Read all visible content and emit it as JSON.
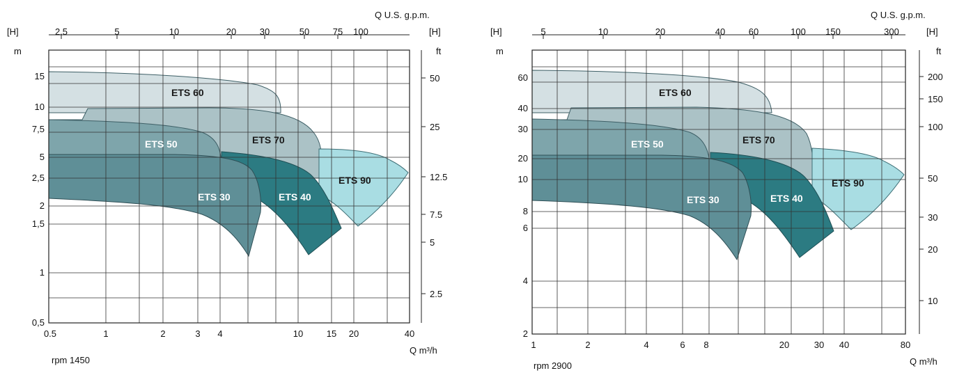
{
  "chart_data": [
    {
      "type": "area",
      "speed_label": "rpm 1450",
      "x_unit_label": "Q  m³/h",
      "top_unit_label": "Q  U.S. g.p.m.",
      "left_unit_label": "[H]",
      "left_unit_sub": "m",
      "right_unit_label": "[H]",
      "right_unit_sub": "ft",
      "x_ticks": [
        "0.5",
        "1",
        "2",
        "3",
        "4",
        "10",
        "15",
        "20",
        "40"
      ],
      "top_ticks": [
        "2.5",
        "5",
        "10",
        "20",
        "30",
        "50",
        "75",
        "100"
      ],
      "left_ticks": [
        "15",
        "10",
        "7,5",
        "5",
        "2,5",
        "2",
        "1,5",
        "1",
        "0,5"
      ],
      "right_ticks": [
        "50",
        "25",
        "12.5",
        "7.5",
        "5",
        "2.5"
      ],
      "series": [
        {
          "name": "ETS 60",
          "label_color": "#1a1a1a",
          "fill": "#d4e0e3",
          "stroke": "#3e5f66"
        },
        {
          "name": "ETS 70",
          "label_color": "#1a1a1a",
          "fill": "#abc2c6",
          "stroke": "#3e5f66"
        },
        {
          "name": "ETS 50",
          "label_color": "#ffffff",
          "fill": "#7ea5ab",
          "stroke": "#3e5f66"
        },
        {
          "name": "ETS 30",
          "label_color": "#ffffff",
          "fill": "#5f8f97",
          "stroke": "#2e4f56"
        },
        {
          "name": "ETS 40",
          "label_color": "#ffffff",
          "fill": "#2c7b82",
          "stroke": "#1f4f55"
        },
        {
          "name": "ETS 90",
          "label_color": "#1a1a1a",
          "fill": "#a9dde3",
          "stroke": "#3e6f76"
        }
      ]
    },
    {
      "type": "area",
      "speed_label": "rpm 2900",
      "x_unit_label": "Q  m³/h",
      "top_unit_label": "Q  U.S. g.p.m.",
      "left_unit_label": "[H]",
      "left_unit_sub": "m",
      "right_unit_label": "[H]",
      "right_unit_sub": "ft",
      "x_ticks": [
        "1",
        "2",
        "4",
        "6",
        "8",
        "20",
        "30",
        "40",
        "80"
      ],
      "top_ticks": [
        "5",
        "10",
        "20",
        "40",
        "60",
        "100",
        "150",
        "300"
      ],
      "left_ticks": [
        "60",
        "40",
        "30",
        "20",
        "10",
        "8",
        "6",
        "4",
        "2"
      ],
      "right_ticks": [
        "200",
        "150",
        "100",
        "50",
        "30",
        "20",
        "10"
      ],
      "series": [
        {
          "name": "ETS 60",
          "label_color": "#1a1a1a",
          "fill": "#d4e0e3",
          "stroke": "#3e5f66"
        },
        {
          "name": "ETS 70",
          "label_color": "#1a1a1a",
          "fill": "#abc2c6",
          "stroke": "#3e5f66"
        },
        {
          "name": "ETS 50",
          "label_color": "#ffffff",
          "fill": "#7ea5ab",
          "stroke": "#3e5f66"
        },
        {
          "name": "ETS 30",
          "label_color": "#ffffff",
          "fill": "#5f8f97",
          "stroke": "#2e4f56"
        },
        {
          "name": "ETS 40",
          "label_color": "#ffffff",
          "fill": "#2c7b82",
          "stroke": "#1f4f55"
        },
        {
          "name": "ETS 90",
          "label_color": "#1a1a1a",
          "fill": "#a9dde3",
          "stroke": "#3e6f76"
        }
      ]
    }
  ]
}
